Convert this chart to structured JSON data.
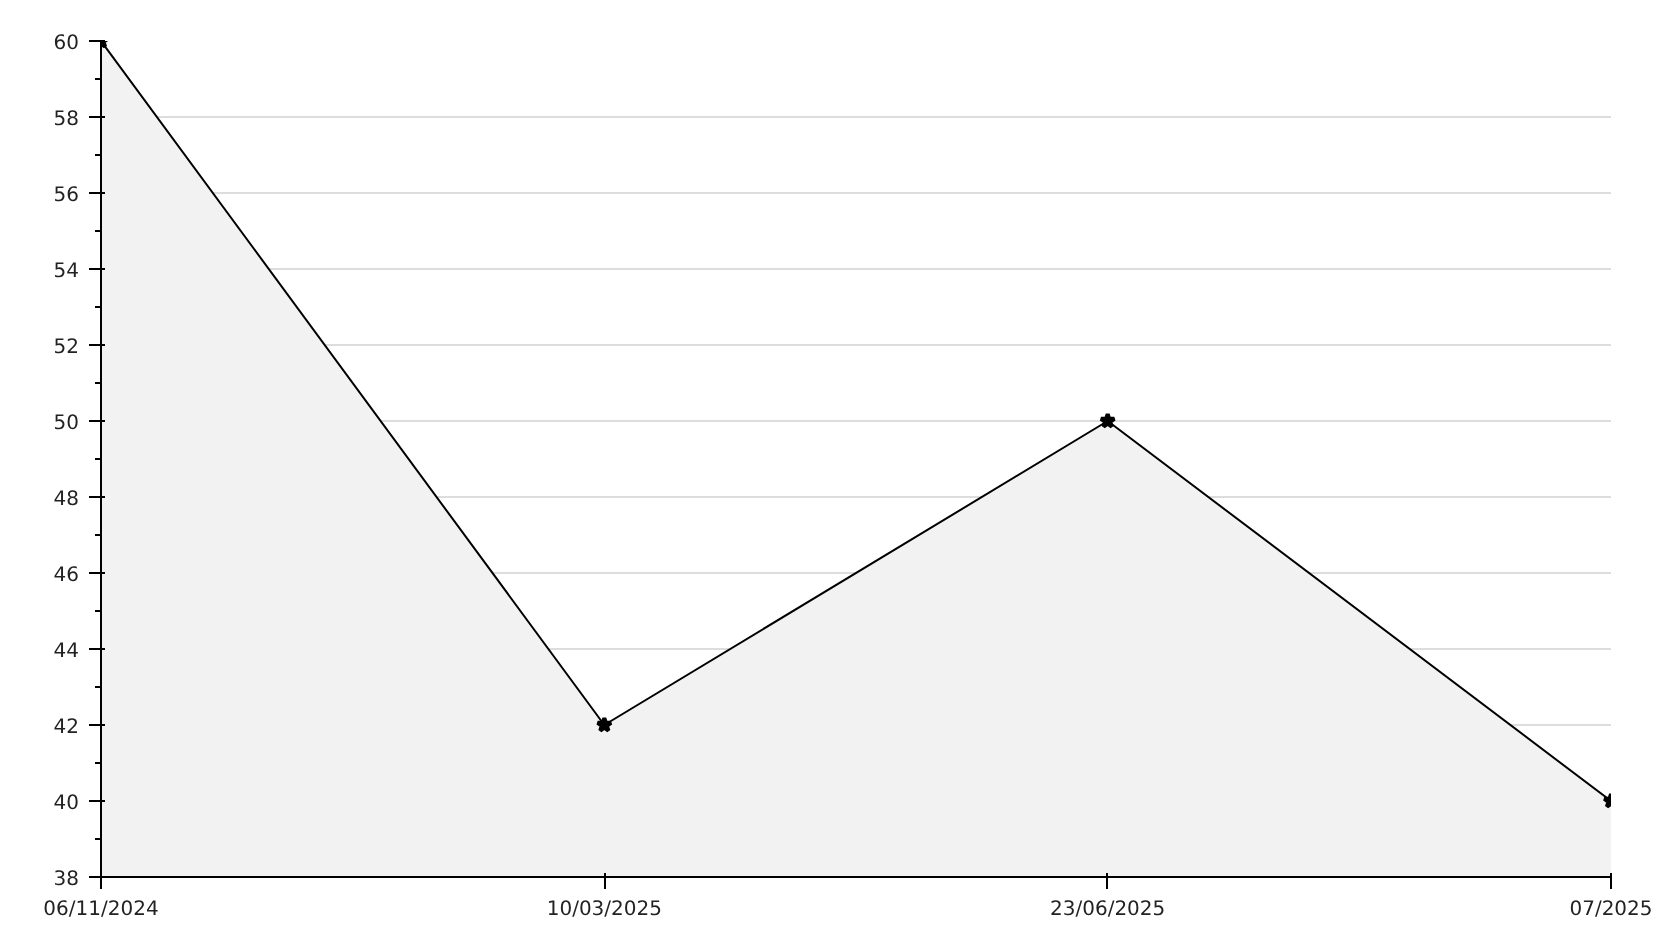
{
  "chart_data": {
    "type": "area",
    "categories": [
      "06/11/2024",
      "10/03/2025",
      "23/06/2025",
      "07/2025"
    ],
    "series": [
      {
        "color": "#000000",
        "values": [
          60,
          42,
          50,
          40
        ]
      }
    ],
    "ylim": [
      38,
      60
    ],
    "yticks": [
      38,
      40,
      42,
      44,
      46,
      48,
      50,
      52,
      54,
      56,
      58,
      60
    ],
    "grid": "y",
    "marker": "star",
    "line_style": "solid"
  }
}
